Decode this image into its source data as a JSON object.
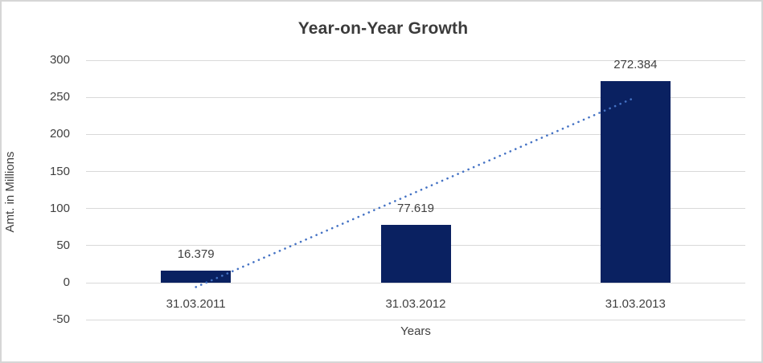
{
  "chart_data": {
    "type": "bar",
    "title": "Year-on-Year Growth",
    "xlabel": "Years",
    "ylabel": "Amt. in Millions",
    "categories": [
      "31.03.2011",
      "31.03.2012",
      "31.03.2013"
    ],
    "values": [
      16.379,
      77.619,
      272.384
    ],
    "point_labels": [
      "16.379",
      "77.619",
      "272.384"
    ],
    "ylim": [
      -50,
      300
    ],
    "yticks": [
      -50,
      0,
      50,
      100,
      150,
      200,
      250,
      300
    ],
    "grid": true,
    "legend": "none",
    "trendline": {
      "type": "linear",
      "style": "dotted"
    },
    "colors": {
      "bar": "#0a2161",
      "trendline": "#4472c4",
      "gridline": "#d9d9d9",
      "text": "#404040",
      "border": "#d6d6d6"
    }
  }
}
